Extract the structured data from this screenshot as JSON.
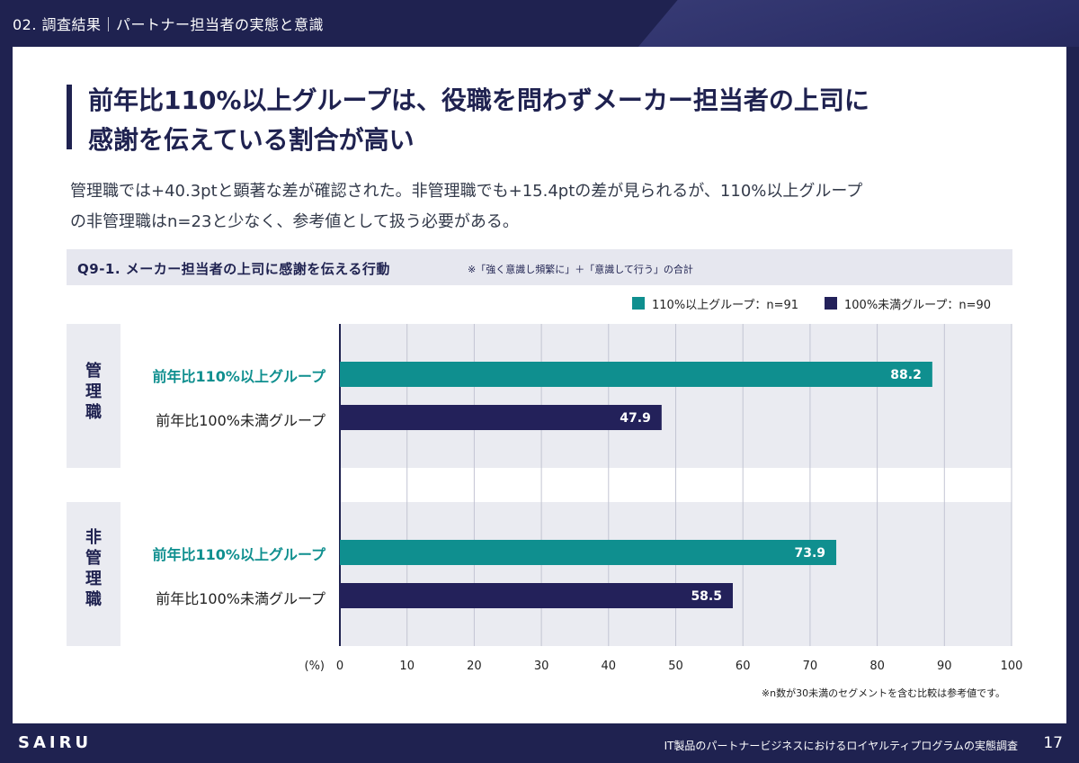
{
  "header": {
    "section": "02. 調査結果｜パートナー担当者の実態と意識"
  },
  "title_lines": [
    "前年比110%以上グループは、役職を問わずメーカー担当者の上司に",
    "感謝を伝えている割合が高い"
  ],
  "lead_lines": [
    "管理職では+40.3ptと顕著な差が確認された。非管理職でも+15.4ptの差が見られるが、110%以上グループ",
    "の非管理職はn=23と少なく、参考値として扱う必要がある。"
  ],
  "question": {
    "title": "Q9-1. メーカー担当者の上司に感謝を伝える行動",
    "note": "※「強く意識し頻繁に」＋「意識して行う」の合計"
  },
  "colors": {
    "teal": "#0f8f8f",
    "navy": "#23215a",
    "grid": "#c3c5d3"
  },
  "chart_data": {
    "type": "bar",
    "orientation": "horizontal",
    "xlabel": "(%)",
    "xlim": [
      0,
      100
    ],
    "ticks": [
      0,
      10,
      20,
      30,
      40,
      50,
      60,
      70,
      80,
      90,
      100
    ],
    "legend": [
      "110%以上グループ：n=91",
      "100%未満グループ：n=90"
    ],
    "legend_position": "top-right",
    "groups": [
      {
        "name": "管理職",
        "bars": [
          {
            "label": "前年比110%以上グループ",
            "value": 88.2
          },
          {
            "label": "前年比100%未満グループ",
            "value": 47.9
          }
        ]
      },
      {
        "name": "非管理職",
        "bars": [
          {
            "label": "前年比110%以上グループ",
            "value": 73.9
          },
          {
            "label": "前年比100%未満グループ",
            "value": 58.5
          }
        ]
      }
    ],
    "footnote": "※n数が30未満のセグメントを含む比較は参考値です。"
  },
  "footer": {
    "brand": "SAIRU",
    "title": "IT製品のパートナービジネスにおけるロイヤルティプログラムの実態調査",
    "page": "17"
  }
}
